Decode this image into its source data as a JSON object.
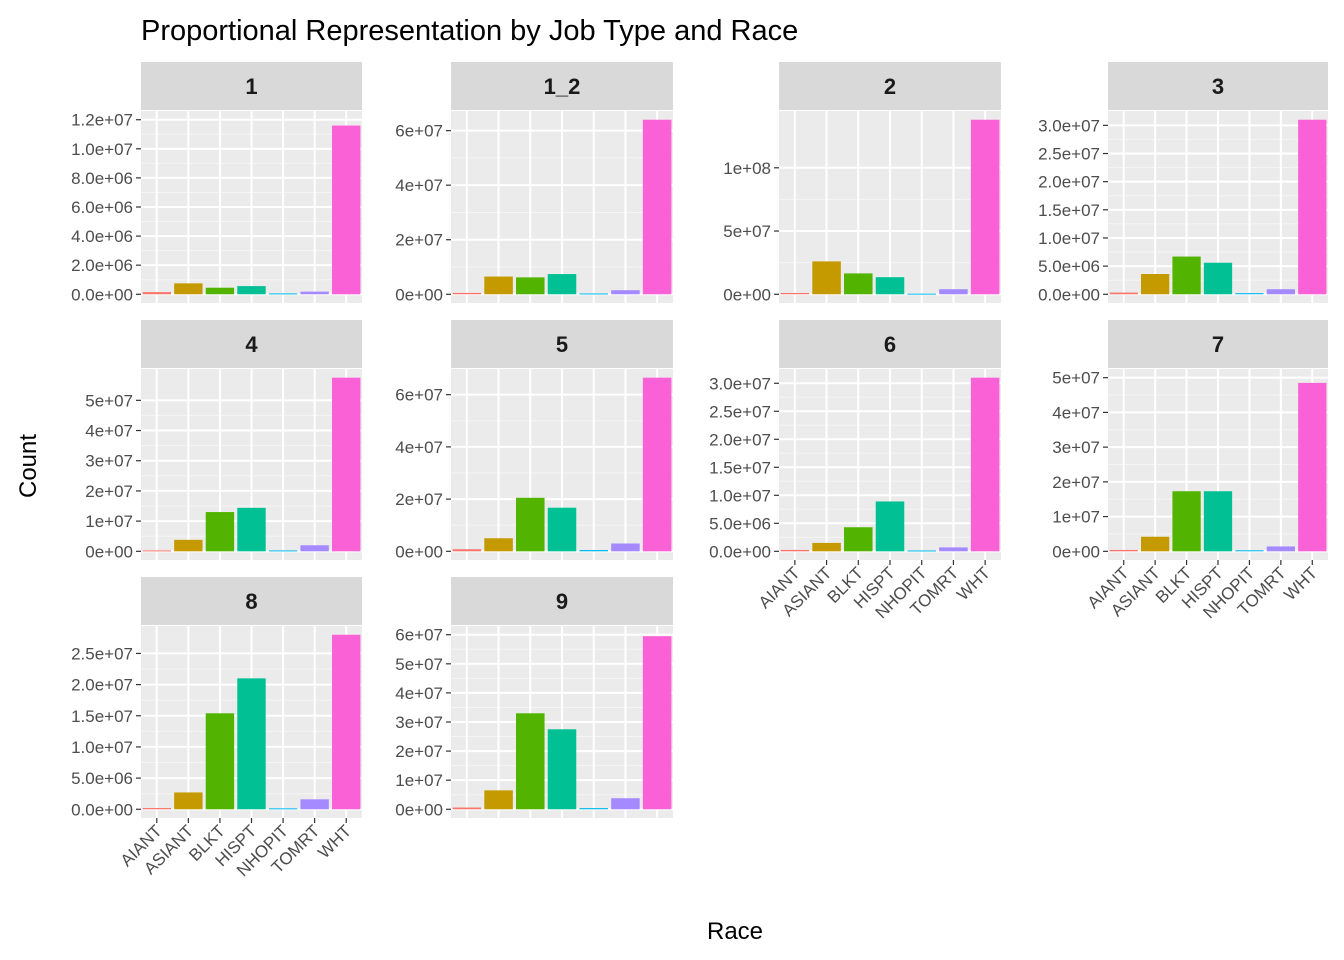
{
  "chart_data": {
    "type": "bar",
    "title": "Proportional Representation by Job Type and Race",
    "xlabel": "Race",
    "ylabel": "Count",
    "categories": [
      "AIANT",
      "ASIANT",
      "BLKT",
      "HISPT",
      "NHOPIT",
      "TOMRT",
      "WHT"
    ],
    "colors": [
      "#F8766D",
      "#C49A00",
      "#53B400",
      "#00C094",
      "#00B6EB",
      "#A58AFF",
      "#FB61D7"
    ],
    "legend": "none",
    "grid": true,
    "facets": [
      {
        "label": "1",
        "ylim": [
          0,
          12000000
        ],
        "yticks": [
          "0.0e+00",
          "2.0e+06",
          "4.0e+06",
          "6.0e+06",
          "8.0e+06",
          "1.0e+07",
          "1.2e+07"
        ],
        "values": [
          150000,
          750000,
          450000,
          560000,
          60000,
          180000,
          11600000
        ]
      },
      {
        "label": "1_2",
        "ylim": [
          0,
          60000000
        ],
        "yticks": [
          "0e+00",
          "2e+07",
          "4e+07",
          "6e+07"
        ],
        "values": [
          500000,
          6500000,
          6200000,
          7400000,
          300000,
          1500000,
          64000000
        ]
      },
      {
        "label": "2",
        "ylim": [
          0,
          100000000
        ],
        "yticks": [
          "0e+00",
          "5e+07",
          "1e+08"
        ],
        "values": [
          1000000,
          26000000,
          16500000,
          13500000,
          500000,
          4000000,
          138000000
        ]
      },
      {
        "label": "3",
        "ylim": [
          0,
          30000000
        ],
        "yticks": [
          "0.0e+00",
          "5.0e+06",
          "1.0e+07",
          "1.5e+07",
          "2.0e+07",
          "2.5e+07",
          "3.0e+07"
        ],
        "values": [
          300000,
          3600000,
          6700000,
          5600000,
          200000,
          900000,
          31000000
        ]
      },
      {
        "label": "4",
        "ylim": [
          0,
          50000000
        ],
        "yticks": [
          "0e+00",
          "1e+07",
          "2e+07",
          "3e+07",
          "4e+07",
          "5e+07"
        ],
        "values": [
          300000,
          3800000,
          13000000,
          14400000,
          300000,
          2000000,
          57500000
        ]
      },
      {
        "label": "5",
        "ylim": [
          0,
          60000000
        ],
        "yticks": [
          "0e+00",
          "2e+07",
          "4e+07",
          "6e+07"
        ],
        "values": [
          800000,
          5000000,
          20500000,
          16700000,
          500000,
          3000000,
          66500000
        ]
      },
      {
        "label": "6",
        "ylim": [
          0,
          30000000
        ],
        "yticks": [
          "0.0e+00",
          "5.0e+06",
          "1.0e+07",
          "1.5e+07",
          "2.0e+07",
          "2.5e+07",
          "3.0e+07"
        ],
        "values": [
          250000,
          1500000,
          4300000,
          8900000,
          150000,
          700000,
          31000000
        ]
      },
      {
        "label": "7",
        "ylim": [
          0,
          50000000
        ],
        "yticks": [
          "0e+00",
          "1e+07",
          "2e+07",
          "3e+07",
          "4e+07",
          "5e+07"
        ],
        "values": [
          400000,
          4200000,
          17300000,
          17300000,
          300000,
          1400000,
          48500000
        ]
      },
      {
        "label": "8",
        "ylim": [
          0,
          25000000
        ],
        "yticks": [
          "0.0e+00",
          "5.0e+06",
          "1.0e+07",
          "1.5e+07",
          "2.0e+07",
          "2.5e+07"
        ],
        "values": [
          200000,
          2700000,
          15400000,
          21000000,
          150000,
          1600000,
          28000000
        ]
      },
      {
        "label": "9",
        "ylim": [
          0,
          60000000
        ],
        "yticks": [
          "0e+00",
          "1e+07",
          "2e+07",
          "3e+07",
          "4e+07",
          "5e+07",
          "6e+07"
        ],
        "values": [
          600000,
          6500000,
          33000000,
          27500000,
          400000,
          3800000,
          59500000
        ]
      }
    ]
  }
}
